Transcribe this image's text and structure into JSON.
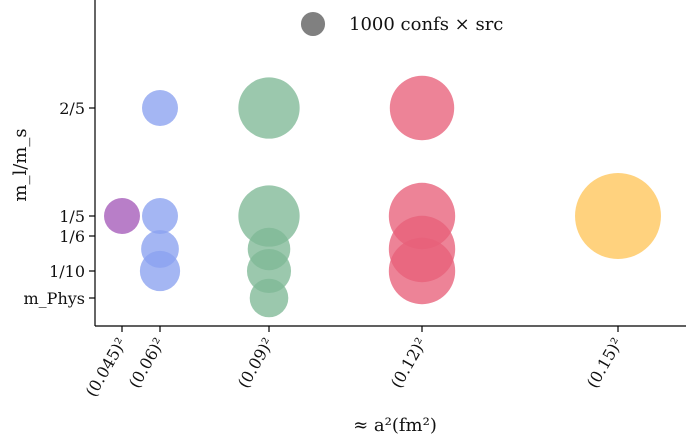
{
  "chart_data": {
    "type": "scatter",
    "xlabel": "≈ a²(fm²)",
    "ylabel": "m_l/m_s",
    "x_ticks": [
      {
        "value": 0.045,
        "label": "(0.045)²"
      },
      {
        "value": 0.06,
        "label": "(0.06)²"
      },
      {
        "value": 0.09,
        "label": "(0.09)²"
      },
      {
        "value": 0.12,
        "label": "(0.12)²"
      },
      {
        "value": 0.15,
        "label": "(0.15)²"
      }
    ],
    "y_ticks": [
      {
        "value": 0.4,
        "label": "2/5"
      },
      {
        "value": 0.2,
        "label": "1/5"
      },
      {
        "value": 0.1667,
        "label": "1/6"
      },
      {
        "value": 0.1,
        "label": "1/10"
      },
      {
        "value": 0.037,
        "label": "m_Phys"
      }
    ],
    "legend": {
      "label": "1000 confs × src",
      "color": "#808080",
      "size": 1000,
      "placement": "top-center"
    },
    "series": [
      {
        "color": "#a45ab8",
        "points": [
          {
            "x": 0.045,
            "y": 0.2,
            "size": 1000
          }
        ]
      },
      {
        "color": "#8aa2ef",
        "points": [
          {
            "x": 0.06,
            "y": 0.4,
            "size": 1000
          },
          {
            "x": 0.06,
            "y": 0.2,
            "size": 1000
          },
          {
            "x": 0.06,
            "y": 0.14,
            "size": 1100
          },
          {
            "x": 0.06,
            "y": 0.1,
            "size": 1250
          }
        ]
      },
      {
        "color": "#7fb896",
        "points": [
          {
            "x": 0.09,
            "y": 0.4,
            "size": 2900
          },
          {
            "x": 0.09,
            "y": 0.2,
            "size": 2900
          },
          {
            "x": 0.09,
            "y": 0.14,
            "size": 1400
          },
          {
            "x": 0.09,
            "y": 0.1,
            "size": 1500
          },
          {
            "x": 0.09,
            "y": 0.037,
            "size": 1150
          }
        ]
      },
      {
        "color": "#e8607a",
        "points": [
          {
            "x": 0.12,
            "y": 0.4,
            "size": 3200
          },
          {
            "x": 0.12,
            "y": 0.2,
            "size": 3400
          },
          {
            "x": 0.12,
            "y": 0.14,
            "size": 3400
          },
          {
            "x": 0.12,
            "y": 0.1,
            "size": 3400
          }
        ]
      },
      {
        "color": "#ffc55a",
        "points": [
          {
            "x": 0.15,
            "y": 0.2,
            "size": 5700
          }
        ]
      }
    ]
  }
}
